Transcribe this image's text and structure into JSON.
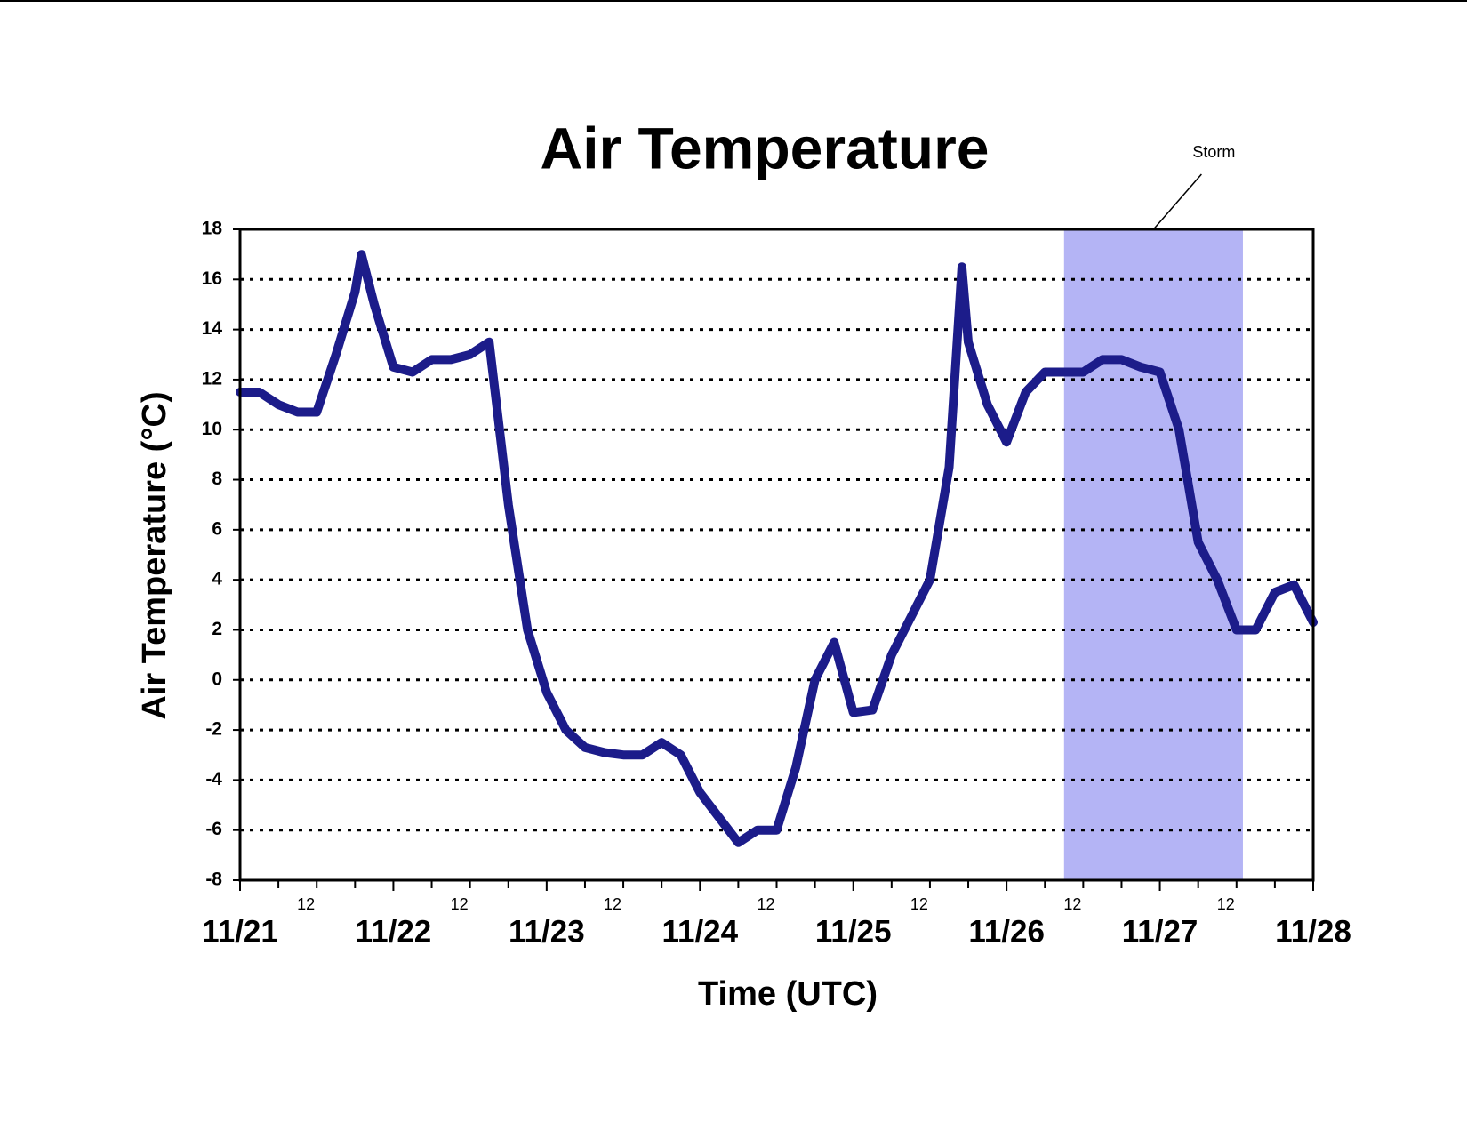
{
  "chart_data": {
    "type": "line",
    "title": "Air Temperature",
    "x_label": "Time (UTC)",
    "y_label": "Air Temperature (°C)",
    "x": [
      "11/21 00",
      "11/21 03",
      "11/21 06",
      "11/21 09",
      "11/21 12",
      "11/21 15",
      "11/21 18",
      "11/21 19",
      "11/21 21",
      "11/22 00",
      "11/22 03",
      "11/22 06",
      "11/22 09",
      "11/22 12",
      "11/22 15",
      "11/22 18",
      "11/22 21",
      "11/23 00",
      "11/23 03",
      "11/23 06",
      "11/23 09",
      "11/23 12",
      "11/23 15",
      "11/23 18",
      "11/23 21",
      "11/24 00",
      "11/24 03",
      "11/24 06",
      "11/24 09",
      "11/24 12",
      "11/24 15",
      "11/24 18",
      "11/24 21",
      "11/25 00",
      "11/25 03",
      "11/25 06",
      "11/25 09",
      "11/25 12",
      "11/25 15",
      "11/25 17",
      "11/25 18",
      "11/25 21",
      "11/26 00",
      "11/26 03",
      "11/26 06",
      "11/26 09",
      "11/26 12",
      "11/26 15",
      "11/26 18",
      "11/26 21",
      "11/27 00",
      "11/27 03",
      "11/27 06",
      "11/27 09",
      "11/27 12",
      "11/27 15",
      "11/27 18",
      "11/27 21",
      "11/28 00"
    ],
    "series": [
      {
        "name": "Air Temperature",
        "color": "#1c1c8a",
        "values": [
          11.5,
          11.5,
          11.0,
          10.7,
          10.7,
          13.0,
          15.5,
          17.0,
          15.0,
          12.5,
          12.3,
          12.8,
          12.8,
          13.0,
          13.5,
          7.0,
          2.0,
          -0.5,
          -2.0,
          -2.7,
          -2.9,
          -3.0,
          -3.0,
          -2.5,
          -3.0,
          -4.5,
          -5.5,
          -6.5,
          -6.0,
          -6.0,
          -3.5,
          0.0,
          1.5,
          -1.3,
          -1.2,
          1.0,
          2.5,
          4.0,
          8.5,
          16.5,
          13.5,
          11.0,
          9.5,
          11.5,
          12.3,
          12.3,
          12.3,
          12.8,
          12.8,
          12.5,
          12.3,
          10.0,
          5.5,
          4.0,
          2.0,
          2.0,
          3.5,
          3.8,
          2.3
        ]
      }
    ],
    "xlim": [
      "11/21 00",
      "11/28 00"
    ],
    "xticks": [
      {
        "value": "11/21 00",
        "label": "11/21"
      },
      {
        "value": "11/21 12",
        "label": "12"
      },
      {
        "value": "11/22 00",
        "label": "11/22"
      },
      {
        "value": "11/22 12",
        "label": "12"
      },
      {
        "value": "11/23 00",
        "label": "11/23"
      },
      {
        "value": "11/23 12",
        "label": "12"
      },
      {
        "value": "11/24 00",
        "label": "11/24"
      },
      {
        "value": "11/24 12",
        "label": "12"
      },
      {
        "value": "11/25 00",
        "label": "11/25"
      },
      {
        "value": "11/25 12",
        "label": "12"
      },
      {
        "value": "11/26 00",
        "label": "11/26"
      },
      {
        "value": "11/26 12",
        "label": "12"
      },
      {
        "value": "11/27 00",
        "label": "11/27"
      },
      {
        "value": "11/27 12",
        "label": "12"
      },
      {
        "value": "11/28 00",
        "label": "11/28"
      }
    ],
    "xminorticks": [
      "11/21 06",
      "11/21 18",
      "11/22 06",
      "11/22 18",
      "11/23 06",
      "11/23 18",
      "11/24 06",
      "11/24 18",
      "11/25 06",
      "11/25 18",
      "11/26 06",
      "11/26 18",
      "11/27 06",
      "11/27 18"
    ],
    "ylim": [
      -8,
      18
    ],
    "yticks": [
      -8,
      -6,
      -4,
      -2,
      0,
      2,
      4,
      6,
      8,
      10,
      12,
      14,
      16,
      18
    ],
    "grid": true,
    "annotations": [
      {
        "text": "Storm",
        "x0": "11/26 09",
        "x1": "11/27 13",
        "color": "#b4b4f5"
      }
    ]
  }
}
